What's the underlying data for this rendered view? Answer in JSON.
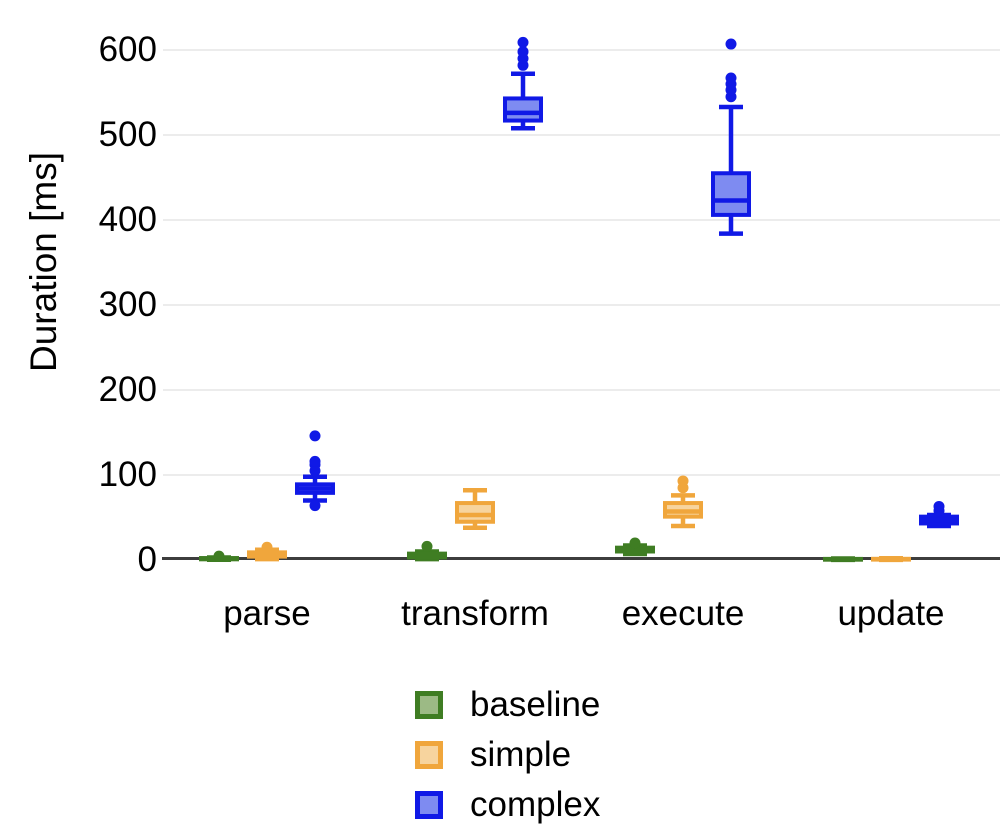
{
  "figure": {
    "background": "#ffffff"
  },
  "chart_data": {
    "type": "boxplot",
    "title": "",
    "ylabel": "Duration [ms]",
    "xlabel": "",
    "categories": [
      "parse",
      "transform",
      "execute",
      "update"
    ],
    "yticks": [
      0,
      100,
      200,
      300,
      400,
      500,
      600
    ],
    "ylim": [
      0,
      620
    ],
    "grid": "horizontal-light-gray",
    "gridline_color": "#ececec",
    "axis_line_color": "#3d3d3d",
    "legend_position": "bottom-center",
    "series": [
      {
        "name": "baseline",
        "border_color": "#3F7D23",
        "fill_color": "#9CBA85",
        "boxes": [
          {
            "category": "parse",
            "whisker_low": 0.3,
            "q1": 0.8,
            "median": 1.5,
            "q3": 2.3,
            "whisker_high": 3,
            "outliers": [
              4.5
            ]
          },
          {
            "category": "transform",
            "whisker_low": 1,
            "q1": 3,
            "median": 5,
            "q3": 7.5,
            "whisker_high": 10,
            "outliers": [
              16
            ]
          },
          {
            "category": "execute",
            "whisker_low": 7,
            "q1": 10,
            "median": 12,
            "q3": 14.5,
            "whisker_high": 17,
            "outliers": [
              20
            ]
          },
          {
            "category": "update",
            "whisker_low": 0.2,
            "q1": 0.5,
            "median": 0.9,
            "q3": 1.3,
            "whisker_high": 1.8,
            "outliers": []
          }
        ]
      },
      {
        "name": "simple",
        "border_color": "#F0A63C",
        "fill_color": "#F7D49E",
        "boxes": [
          {
            "category": "parse",
            "whisker_low": 1,
            "q1": 4,
            "median": 6,
            "q3": 9,
            "whisker_high": 12,
            "outliers": [
              15
            ]
          },
          {
            "category": "transform",
            "whisker_low": 38,
            "q1": 45,
            "median": 53,
            "q3": 67,
            "whisker_high": 82,
            "outliers": []
          },
          {
            "category": "execute",
            "whisker_low": 40,
            "q1": 51,
            "median": 57,
            "q3": 67,
            "whisker_high": 76,
            "outliers": [
              85,
              93
            ]
          },
          {
            "category": "update",
            "whisker_low": 0.2,
            "q1": 0.5,
            "median": 0.9,
            "q3": 1.4,
            "whisker_high": 2,
            "outliers": []
          }
        ]
      },
      {
        "name": "complex",
        "border_color": "#1019E6",
        "fill_color": "#7E8BF1",
        "boxes": [
          {
            "category": "parse",
            "whisker_low": 70,
            "q1": 79,
            "median": 84,
            "q3": 89,
            "whisker_high": 98,
            "outliers": [
              64,
              105,
              112,
              116,
              146
            ]
          },
          {
            "category": "transform",
            "whisker_low": 508,
            "q1": 517,
            "median": 526,
            "q3": 543,
            "whisker_high": 572,
            "outliers": [
              582,
              590,
              598,
              609
            ]
          },
          {
            "category": "execute",
            "whisker_low": 384,
            "q1": 406,
            "median": 423,
            "q3": 455,
            "whisker_high": 533,
            "outliers": [
              545,
              553,
              560,
              567,
              607
            ]
          },
          {
            "category": "update",
            "whisker_low": 40,
            "q1": 43,
            "median": 47,
            "q3": 51,
            "whisker_high": 53,
            "outliers": [
              58,
              63
            ]
          }
        ]
      }
    ]
  }
}
